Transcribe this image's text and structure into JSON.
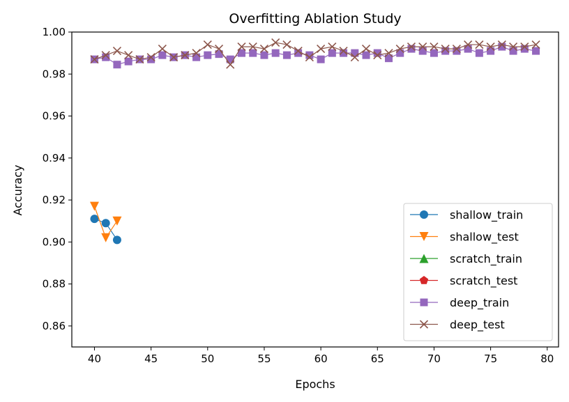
{
  "chart_data": {
    "type": "line",
    "title": "Overfitting Ablation Study",
    "xlabel": "Epochs",
    "ylabel": "Accuracy",
    "xlim": [
      38,
      81
    ],
    "ylim": [
      0.85,
      1.0
    ],
    "xticks": [
      40,
      45,
      50,
      55,
      60,
      65,
      70,
      75,
      80
    ],
    "yticks": [
      0.86,
      0.88,
      0.9,
      0.92,
      0.94,
      0.96,
      0.98,
      1.0
    ],
    "xtick_labels": [
      "40",
      "45",
      "50",
      "55",
      "60",
      "65",
      "70",
      "75",
      "80"
    ],
    "ytick_labels": [
      "0.86",
      "0.88",
      "0.90",
      "0.92",
      "0.94",
      "0.96",
      "0.98",
      "1.00"
    ],
    "grid": false,
    "legend_position": "lower-right",
    "series": [
      {
        "name": "shallow_train",
        "color": "#1f77b4",
        "marker": "circle",
        "x": [
          40,
          41,
          42
        ],
        "y": [
          0.911,
          0.909,
          0.901
        ]
      },
      {
        "name": "shallow_test",
        "color": "#ff7f0e",
        "marker": "triangle-down",
        "x": [
          40,
          41,
          42
        ],
        "y": [
          0.917,
          0.902,
          0.91
        ]
      },
      {
        "name": "scratch_train",
        "color": "#2ca02c",
        "marker": "triangle-up",
        "x": [],
        "y": []
      },
      {
        "name": "scratch_test",
        "color": "#d62728",
        "marker": "pentagon",
        "x": [],
        "y": []
      },
      {
        "name": "deep_train",
        "color": "#9467bd",
        "marker": "square",
        "x": [
          40,
          41,
          42,
          43,
          44,
          45,
          46,
          47,
          48,
          49,
          50,
          51,
          52,
          53,
          54,
          55,
          56,
          57,
          58,
          59,
          60,
          61,
          62,
          63,
          64,
          65,
          66,
          67,
          68,
          69,
          70,
          71,
          72,
          73,
          74,
          75,
          76,
          77,
          78,
          79
        ],
        "y": [
          0.987,
          0.988,
          0.9845,
          0.986,
          0.987,
          0.987,
          0.989,
          0.988,
          0.989,
          0.988,
          0.989,
          0.9895,
          0.987,
          0.99,
          0.99,
          0.989,
          0.99,
          0.989,
          0.99,
          0.989,
          0.987,
          0.99,
          0.99,
          0.99,
          0.989,
          0.99,
          0.9875,
          0.99,
          0.992,
          0.991,
          0.99,
          0.991,
          0.991,
          0.992,
          0.99,
          0.991,
          0.993,
          0.991,
          0.992,
          0.991
        ]
      },
      {
        "name": "deep_test",
        "color": "#8c564b",
        "marker": "x",
        "x": [
          40,
          41,
          42,
          43,
          44,
          45,
          46,
          47,
          48,
          49,
          50,
          51,
          52,
          53,
          54,
          55,
          56,
          57,
          58,
          59,
          60,
          61,
          62,
          63,
          64,
          65,
          66,
          67,
          68,
          69,
          70,
          71,
          72,
          73,
          74,
          75,
          76,
          77,
          78,
          79
        ],
        "y": [
          0.987,
          0.989,
          0.991,
          0.989,
          0.987,
          0.988,
          0.992,
          0.988,
          0.989,
          0.99,
          0.994,
          0.992,
          0.9845,
          0.993,
          0.993,
          0.992,
          0.995,
          0.994,
          0.991,
          0.988,
          0.992,
          0.993,
          0.991,
          0.988,
          0.992,
          0.989,
          0.99,
          0.992,
          0.993,
          0.993,
          0.993,
          0.992,
          0.992,
          0.994,
          0.994,
          0.993,
          0.994,
          0.993,
          0.993,
          0.994
        ]
      }
    ]
  }
}
